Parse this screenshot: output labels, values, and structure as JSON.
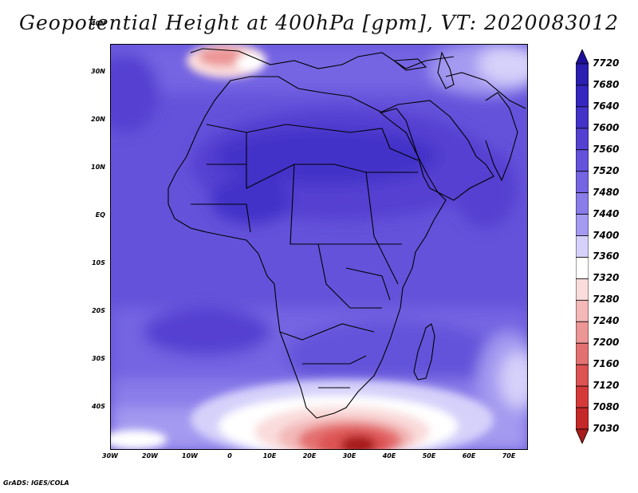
{
  "title": "Geopotential Height at 400hPa [gpm], VT: 2020083012",
  "credit": "GrADS: IGES/COLA",
  "lat_labels": [
    "40N",
    "30N",
    "20N",
    "10N",
    "EQ",
    "10S",
    "20S",
    "30S",
    "40S"
  ],
  "lon_labels": [
    "30W",
    "20W",
    "10W",
    "0",
    "10E",
    "20E",
    "30E",
    "40E",
    "50E",
    "60E",
    "70E"
  ],
  "colorbar": {
    "levels": [
      "7720",
      "7680",
      "7640",
      "7600",
      "7560",
      "7520",
      "7480",
      "7440",
      "7400",
      "7360",
      "7320",
      "7280",
      "7240",
      "7200",
      "7160",
      "7120",
      "7080",
      "7030"
    ],
    "colors": [
      "#1e0f9a",
      "#2a1fb0",
      "#3526bf",
      "#4333c8",
      "#5441d1",
      "#6452da",
      "#7565e2",
      "#8a7ce9",
      "#a49af0",
      "#d5d1fa",
      "#ffffff",
      "#fadcdc",
      "#f3b8b8",
      "#ec9696",
      "#e47171",
      "#dd5252",
      "#d53a3a",
      "#c42828",
      "#a81c1c"
    ]
  }
}
